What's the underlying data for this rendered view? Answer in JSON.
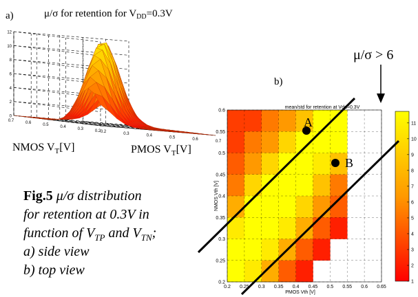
{
  "panel_a": {
    "label": "a)",
    "title_main": "μ/σ for retention for V",
    "title_sub": "DD",
    "title_tail": "=0.3V",
    "z_ticks": [
      "0",
      "2",
      "4",
      "6",
      "8",
      "10",
      "12"
    ],
    "nmos_ticks": [
      "0.7",
      "0.6",
      "0.5",
      "0.4",
      "0.3",
      "0.2"
    ],
    "pmos_ticks": [
      "0.2",
      "0.3",
      "0.4",
      "0.5",
      "0.6",
      "0.7"
    ],
    "nmos_label_main": "NMOS V",
    "nmos_label_sub": "T",
    "nmos_label_tail": "[V]",
    "pmos_label_main": "PMOS V",
    "pmos_label_sub": "T",
    "pmos_label_tail": "[V]"
  },
  "panel_b": {
    "label": "b)",
    "title": "mean/std for retention at Vdd=0.3V",
    "ylabel": "NMOS Vth [V]",
    "xlabel": "PMOS Vth [V]",
    "x_ticks": [
      "0.2",
      "0.25",
      "0.3",
      "0.35",
      "0.4",
      "0.45",
      "0.5",
      "0.55",
      "0.6",
      "0.65"
    ],
    "y_ticks": [
      "0.2",
      "0.25",
      "0.3",
      "0.35",
      "0.4",
      "0.45",
      "0.5",
      "0.55",
      "0.6"
    ],
    "colorbar_ticks": [
      "1",
      "2",
      "3",
      "4",
      "5",
      "6",
      "7",
      "8",
      "9",
      "10",
      "11"
    ],
    "point_a": "A",
    "point_b": "B",
    "threshold_annotation": "μ/σ > 6"
  },
  "caption": {
    "bold": "Fig.5",
    "line1": "μ/σ distribution",
    "line2": "for retention at 0.3V in",
    "line3_main": "function of V",
    "line3_sub1": "TP",
    "line3_mid": " and V",
    "line3_sub2": "TN",
    "line3_tail": ";",
    "line4": "a) side view",
    "line5": "b) top view"
  },
  "colors": {
    "low": "#ff0000",
    "mid": "#ff9900",
    "high": "#ffff00",
    "background": "#ffffff"
  },
  "chart_data": [
    {
      "type": "surface",
      "title": "μ/σ for retention for VDD=0.3V",
      "xlabel": "PMOS VT[V]",
      "ylabel": "NMOS VT[V]",
      "zlim": [
        0,
        12
      ],
      "peak": {
        "x": 0.4,
        "y": 0.45,
        "z": 12
      }
    },
    {
      "type": "heatmap",
      "title": "mean/std for retention at Vdd=0.3V",
      "xlabel": "PMOS Vth [V]",
      "ylabel": "NMOS Vth [V]",
      "xlim": [
        0.2,
        0.65
      ],
      "ylim": [
        0.2,
        0.6
      ],
      "colorbar_range": [
        1,
        11
      ],
      "x_centers": [
        0.225,
        0.275,
        0.325,
        0.375,
        0.425,
        0.475,
        0.525,
        0.575,
        0.625
      ],
      "y_centers": [
        0.575,
        0.525,
        0.475,
        0.425,
        0.375,
        0.325,
        0.275,
        0.225
      ],
      "z_rows_top_to_bottom": [
        [
          3,
          3,
          5,
          6,
          8,
          11,
          11,
          null,
          null
        ],
        [
          3,
          5,
          6,
          9,
          11,
          11,
          11,
          null,
          null
        ],
        [
          4,
          6,
          9,
          11,
          11,
          10,
          8,
          null,
          null
        ],
        [
          5,
          9,
          11,
          11,
          11,
          8,
          5,
          null,
          null
        ],
        [
          7,
          11,
          11,
          11,
          9,
          6,
          4,
          null,
          null
        ],
        [
          10,
          11,
          11,
          10,
          7,
          4,
          2,
          null,
          null
        ],
        [
          11,
          11,
          10,
          7,
          4,
          2,
          null,
          null,
          null
        ],
        [
          11,
          10,
          7,
          4,
          2,
          null,
          null,
          null,
          null
        ]
      ],
      "points": [
        {
          "label": "A",
          "x": 0.42,
          "y": 0.6
        },
        {
          "label": "B",
          "x": 0.5,
          "y": 0.52
        }
      ],
      "annotation": "μ/σ > 6"
    }
  ]
}
